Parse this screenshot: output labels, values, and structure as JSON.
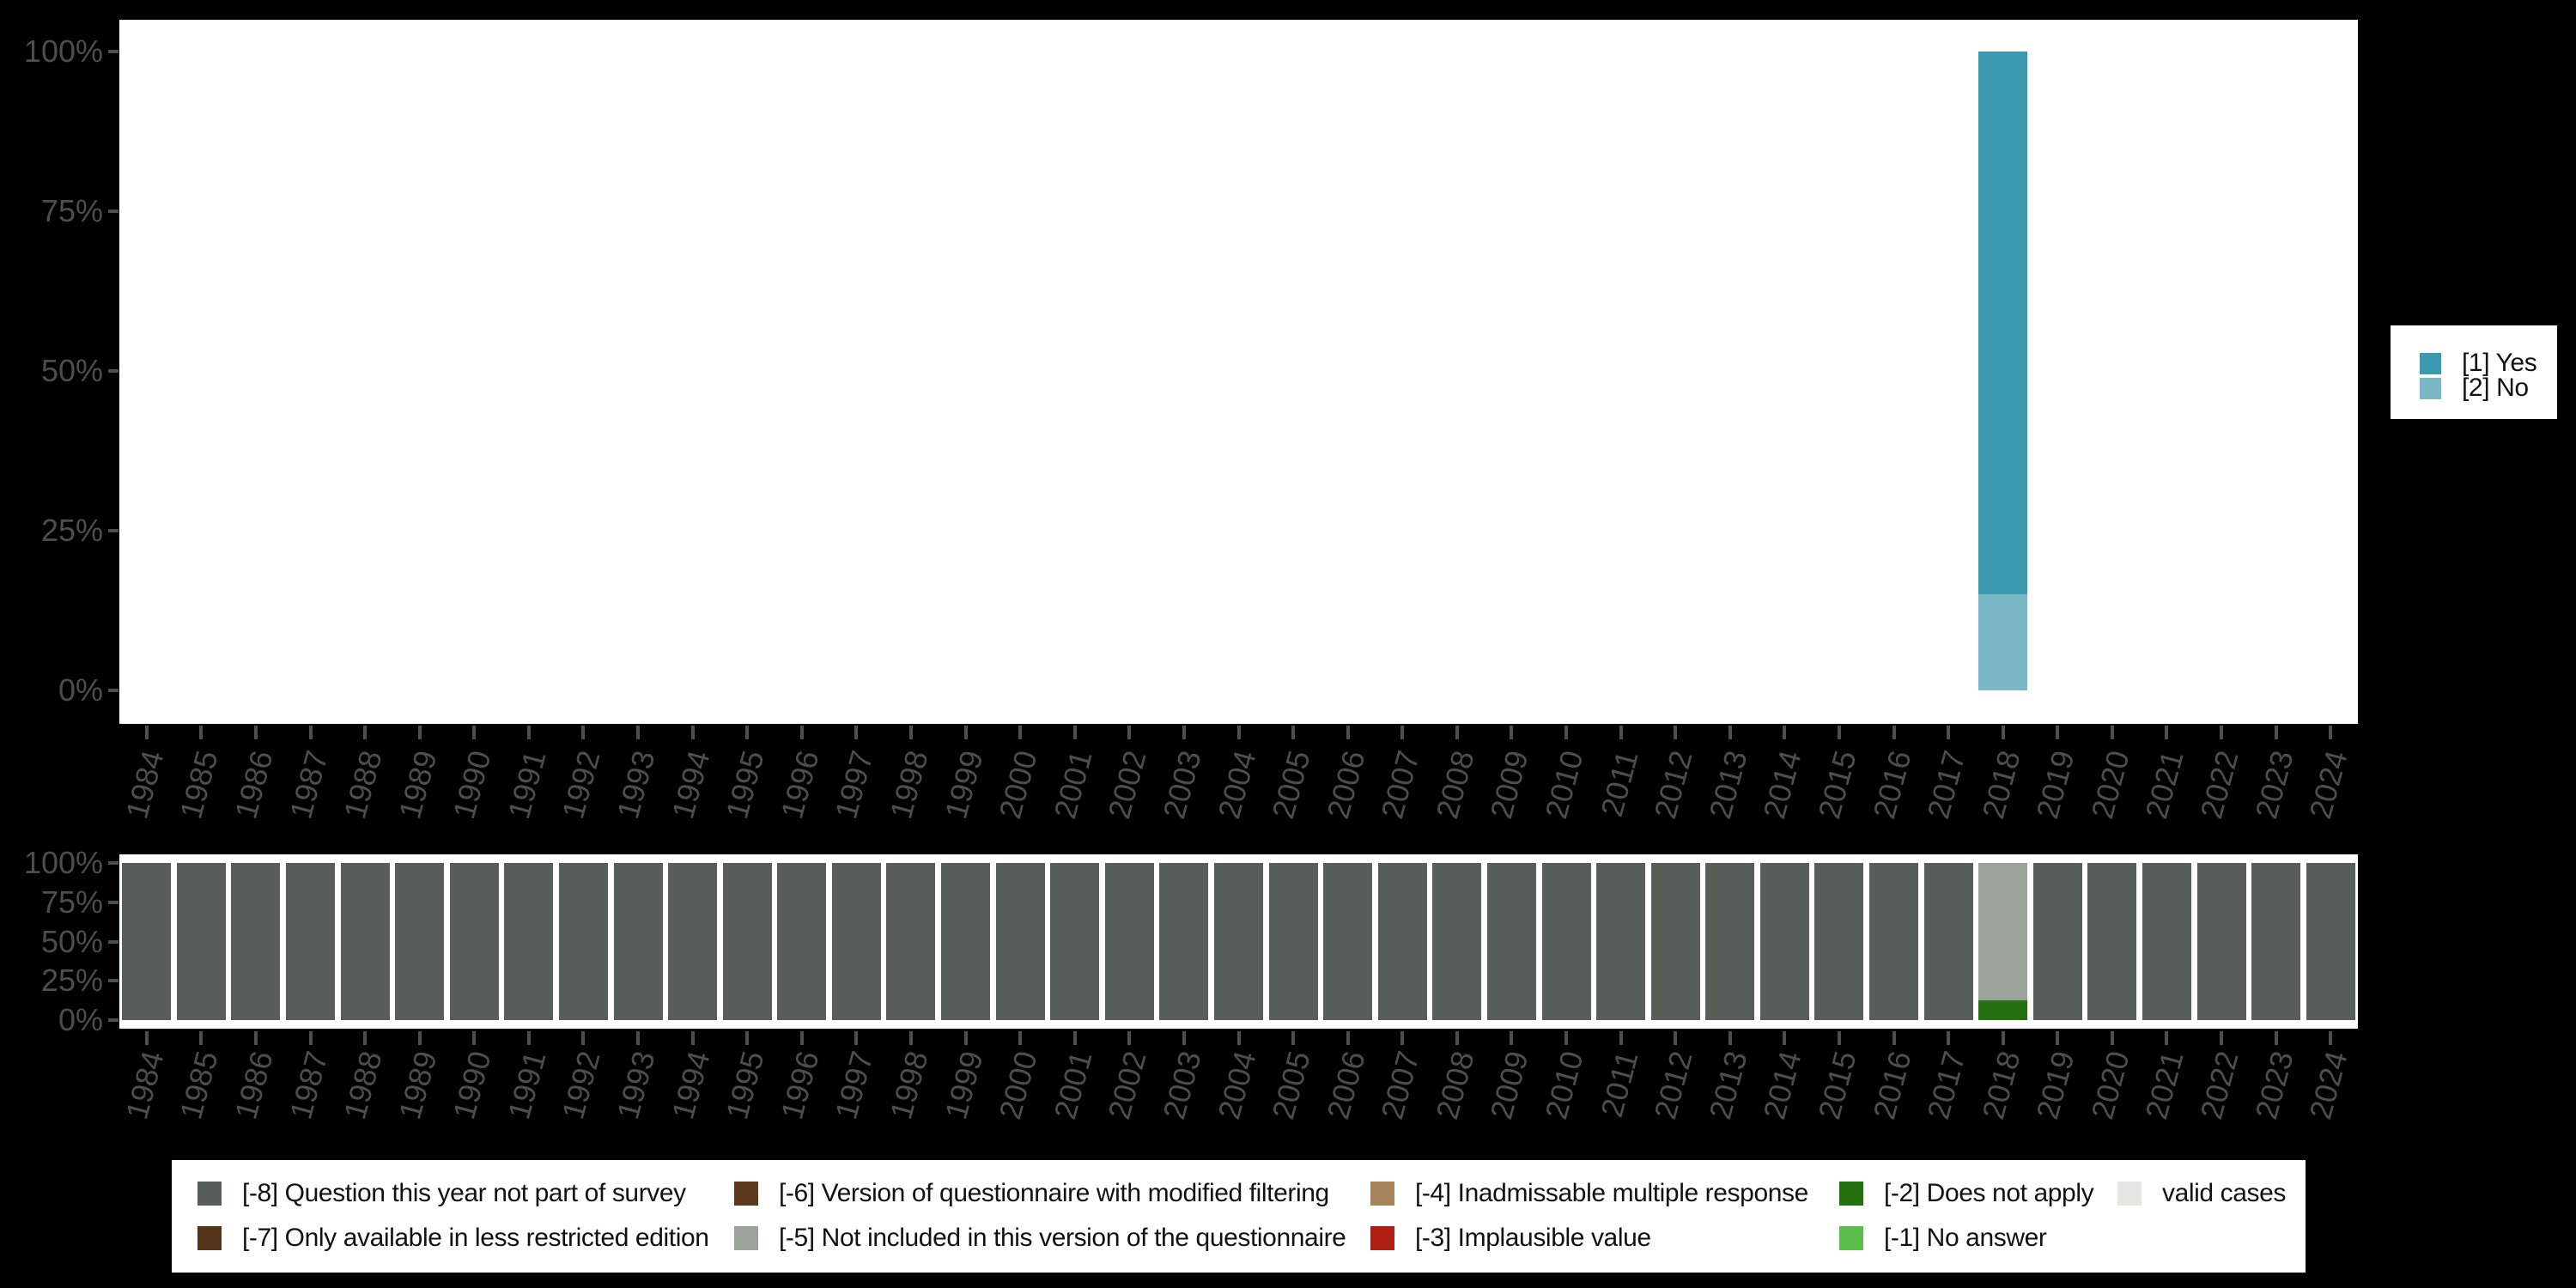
{
  "page": {
    "background_color": "#000000",
    "plot_background_color": "#FFFFFF",
    "axis_text_color": "#4D4D4D"
  },
  "chart_data": [
    {
      "type": "bar",
      "stacked": true,
      "id": "variable-frequencies-by-year",
      "title": "",
      "xlabel": "",
      "ylabel": "",
      "categories": [
        "1984",
        "1985",
        "1986",
        "1987",
        "1988",
        "1989",
        "1990",
        "1991",
        "1992",
        "1993",
        "1994",
        "1995",
        "1996",
        "1997",
        "1998",
        "1999",
        "2000",
        "2001",
        "2002",
        "2003",
        "2004",
        "2005",
        "2006",
        "2007",
        "2008",
        "2009",
        "2010",
        "2011",
        "2012",
        "2013",
        "2014",
        "2015",
        "2016",
        "2017",
        "2018",
        "2019",
        "2020",
        "2021",
        "2022",
        "2023",
        "2024"
      ],
      "y_ticks": [
        "0%",
        "25%",
        "50%",
        "75%",
        "100%"
      ],
      "ylim": [
        0,
        100
      ],
      "grid": false,
      "x_tick_labels_rotated_deg": 75,
      "legend": {
        "position": "right",
        "entries": [
          "[1] Yes",
          "[2] No"
        ]
      },
      "series": [
        {
          "name": "[1] Yes",
          "color": "#3B99B0",
          "default_value": 0,
          "values_by_year": {
            "2018": 85
          }
        },
        {
          "name": "[2] No",
          "color": "#7AB8C6",
          "default_value": 0,
          "values_by_year": {
            "2018": 15
          }
        }
      ]
    },
    {
      "type": "bar",
      "stacked": true,
      "id": "missing-values-by-year",
      "title": "",
      "xlabel": "",
      "ylabel": "",
      "categories": [
        "1984",
        "1985",
        "1986",
        "1987",
        "1988",
        "1989",
        "1990",
        "1991",
        "1992",
        "1993",
        "1994",
        "1995",
        "1996",
        "1997",
        "1998",
        "1999",
        "2000",
        "2001",
        "2002",
        "2003",
        "2004",
        "2005",
        "2006",
        "2007",
        "2008",
        "2009",
        "2010",
        "2011",
        "2012",
        "2013",
        "2014",
        "2015",
        "2016",
        "2017",
        "2018",
        "2019",
        "2020",
        "2021",
        "2022",
        "2023",
        "2024"
      ],
      "y_ticks": [
        "0%",
        "25%",
        "50%",
        "75%",
        "100%"
      ],
      "ylim": [
        0,
        100
      ],
      "grid": false,
      "x_tick_labels_rotated_deg": 75,
      "legend": {
        "position": "bottom",
        "entries": [
          "[-8] Question this year not part of survey",
          "[-7] Only available in less restricted edition",
          "[-6] Version of questionnaire with modified filtering",
          "[-5] Not included in this version of the questionnaire",
          "[-4] Inadmissable multiple response",
          "[-3] Implausible value",
          "[-2] Does not apply",
          "[-1] No answer",
          "valid cases"
        ]
      },
      "series": [
        {
          "name": "[-8] Question this year not part of survey",
          "color": "#575E57",
          "default_value": 100,
          "values_by_year": {
            "2018": 0
          }
        },
        {
          "name": "[-7] Only available in less restricted edition",
          "color": "#533619",
          "default_value": 0,
          "values_by_year": {}
        },
        {
          "name": "[-6] Version of questionnaire with modified filtering",
          "color": "#5D3A1B",
          "default_value": 0,
          "values_by_year": {}
        },
        {
          "name": "[-5] Not included in this version of the questionnaire",
          "color": "#9AA29A",
          "default_value": 0,
          "values_by_year": {
            "2018": 87.5
          }
        },
        {
          "name": "[-4] Inadmissable multiple response",
          "color": "#A6835B",
          "default_value": 0,
          "values_by_year": {}
        },
        {
          "name": "[-3] Implausible value",
          "color": "#AE1E13",
          "default_value": 0,
          "values_by_year": {}
        },
        {
          "name": "[-2] Does not apply",
          "color": "#24710F",
          "default_value": 0,
          "values_by_year": {
            "2018": 12.5
          }
        },
        {
          "name": "[-1] No answer",
          "color": "#5BBE4B",
          "default_value": 0,
          "values_by_year": {}
        },
        {
          "name": "valid cases",
          "color": "#E4E8E1",
          "default_value": 0,
          "values_by_year": {}
        }
      ]
    }
  ]
}
